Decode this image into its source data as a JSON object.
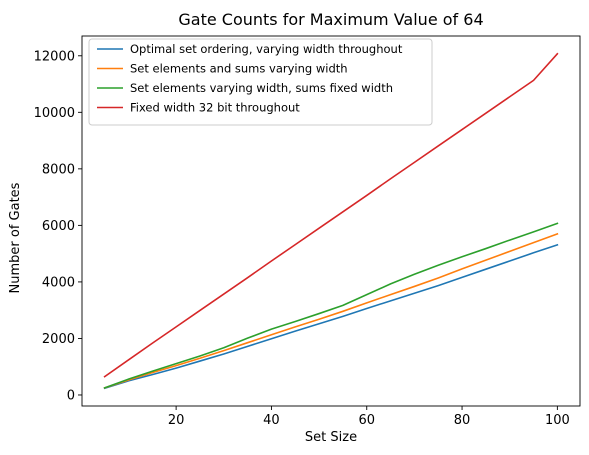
{
  "chart_data": {
    "type": "line",
    "title": "Gate Counts for Maximum Value of 64",
    "xlabel": "Set Size",
    "ylabel": "Number of Gates",
    "xlim": [
      0.25,
      104.75
    ],
    "ylim": [
      -390,
      12700
    ],
    "xticks": [
      20,
      40,
      60,
      80,
      100
    ],
    "yticks": [
      0,
      2000,
      4000,
      6000,
      8000,
      10000,
      12000
    ],
    "grid": false,
    "legend_position": "top-left",
    "x": [
      5,
      10,
      15,
      20,
      25,
      30,
      35,
      40,
      45,
      50,
      55,
      60,
      65,
      70,
      75,
      80,
      85,
      90,
      95,
      100
    ],
    "series": [
      {
        "name": "Optimal set ordering, varying width throughout",
        "color": "#1f77b4",
        "values": [
          240,
          500,
          720,
          950,
          1200,
          1450,
          1720,
          1990,
          2260,
          2520,
          2780,
          3060,
          3330,
          3600,
          3870,
          4160,
          4450,
          4740,
          5030,
          5310
        ]
      },
      {
        "name": "Set elements and sums varying width",
        "color": "#ff7f0e",
        "values": [
          250,
          530,
          790,
          1040,
          1300,
          1570,
          1850,
          2130,
          2410,
          2680,
          2960,
          3260,
          3550,
          3840,
          4140,
          4460,
          4770,
          5080,
          5390,
          5700
        ]
      },
      {
        "name": "Set elements varying width, sums fixed width",
        "color": "#2ca02c",
        "values": [
          250,
          560,
          840,
          1110,
          1380,
          1670,
          2010,
          2330,
          2600,
          2880,
          3170,
          3550,
          3930,
          4270,
          4590,
          4890,
          5180,
          5480,
          5770,
          6070
        ]
      },
      {
        "name": "Fixed width 32 bit throughout",
        "color": "#d62728",
        "values": [
          650,
          1240,
          1830,
          2410,
          2990,
          3570,
          4150,
          4740,
          5320,
          5900,
          6480,
          7060,
          7650,
          8230,
          8810,
          9390,
          9970,
          10550,
          11130,
          12070
        ]
      }
    ]
  }
}
